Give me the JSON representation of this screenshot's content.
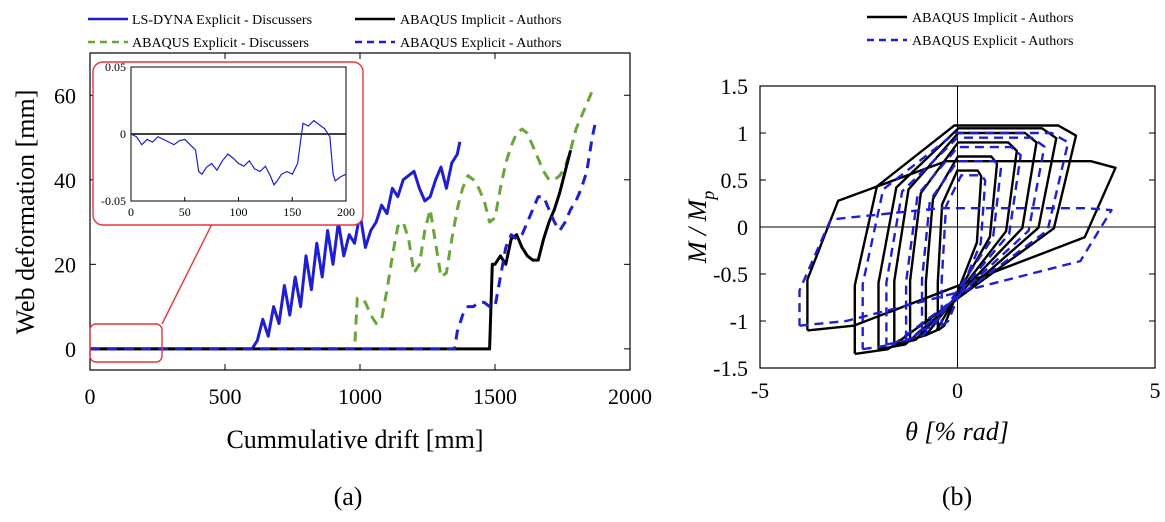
{
  "captions": {
    "a": "(a)",
    "b": "(b)"
  },
  "chart_data": [
    {
      "type": "line",
      "xlabel": "Cummulative drift [mm]",
      "ylabel": "Web deformation [mm]",
      "xlim": [
        0,
        2000
      ],
      "ylim": [
        -5,
        70
      ],
      "xticks": [
        "0",
        "500",
        "1000",
        "1500",
        "2000"
      ],
      "yticks": [
        "0",
        "20",
        "40",
        "60"
      ],
      "legend_position": "top",
      "series": [
        {
          "name": "LS-DYNA Explicit - Discussers",
          "color": "#1f1fd1",
          "style": "solid",
          "x": [
            0,
            600,
            620,
            640,
            660,
            680,
            700,
            720,
            740,
            760,
            780,
            800,
            820,
            840,
            860,
            880,
            900,
            920,
            940,
            960,
            980,
            1000,
            1020,
            1040,
            1060,
            1080,
            1100,
            1120,
            1140,
            1160,
            1180,
            1200,
            1220,
            1240,
            1260,
            1280,
            1300,
            1320,
            1340,
            1360,
            1370
          ],
          "y": [
            0,
            0,
            2,
            7,
            3,
            10,
            6,
            15,
            8,
            17,
            10,
            22,
            14,
            25,
            17,
            28,
            20,
            30,
            22,
            27,
            25,
            32,
            24,
            28,
            30,
            34,
            32,
            38,
            36,
            40,
            41,
            42,
            38,
            35,
            36,
            40,
            43,
            38,
            44,
            46,
            49
          ]
        },
        {
          "name": "ABAQUS Explicit - Discussers",
          "color": "#6aa53a",
          "style": "dashed",
          "x": [
            0,
            980,
            990,
            1000,
            1020,
            1040,
            1060,
            1080,
            1100,
            1120,
            1140,
            1160,
            1180,
            1200,
            1220,
            1240,
            1260,
            1280,
            1300,
            1320,
            1340,
            1360,
            1380,
            1400,
            1420,
            1440,
            1460,
            1480,
            1500,
            1520,
            1540,
            1560,
            1580,
            1600,
            1620,
            1640,
            1660,
            1680,
            1700,
            1720,
            1740,
            1760,
            1780,
            1800,
            1820,
            1840,
            1860,
            1870
          ],
          "y": [
            0,
            0,
            12,
            12,
            11,
            8,
            6,
            7,
            14,
            22,
            29,
            30,
            26,
            18,
            20,
            28,
            33,
            25,
            17,
            18,
            26,
            33,
            38,
            41,
            40,
            38,
            35,
            30,
            31,
            38,
            44,
            48,
            51,
            52,
            51,
            48,
            45,
            42,
            40,
            40,
            41,
            43,
            47,
            52,
            55,
            58,
            61,
            61
          ]
        },
        {
          "name": "ABAQUS Implicit - Authors",
          "color": "#000000",
          "style": "solid",
          "x": [
            0,
            1480,
            1490,
            1500,
            1520,
            1540,
            1560,
            1580,
            1600,
            1620,
            1640,
            1660,
            1680,
            1700,
            1720,
            1740,
            1760,
            1780
          ],
          "y": [
            0,
            0,
            20,
            20,
            22,
            20,
            26,
            27,
            24,
            22,
            21,
            21,
            26,
            30,
            33,
            37,
            42,
            47
          ]
        },
        {
          "name": "ABAQUS Explicit - Authors",
          "color": "#1f1fd1",
          "style": "dashed",
          "x": [
            0,
            1350,
            1360,
            1380,
            1400,
            1420,
            1440,
            1460,
            1480,
            1500,
            1520,
            1540,
            1560,
            1580,
            1600,
            1620,
            1640,
            1660,
            1680,
            1700,
            1720,
            1740,
            1760,
            1780,
            1800,
            1820,
            1840,
            1860,
            1870
          ],
          "y": [
            0,
            0,
            4,
            8,
            10,
            10,
            11,
            11,
            10,
            10,
            17,
            24,
            27,
            26,
            27,
            30,
            33,
            36,
            36,
            33,
            30,
            28,
            30,
            33,
            35,
            38,
            42,
            50,
            53
          ]
        }
      ],
      "inset": {
        "xlim": [
          0,
          200
        ],
        "ylim": [
          -0.05,
          0.05
        ],
        "xticks": [
          "0",
          "50",
          "100",
          "150",
          "200"
        ],
        "yticks": [
          "0.05",
          "0",
          "-0.05"
        ],
        "series": {
          "color": "#1f1fd1",
          "x": [
            0,
            5,
            10,
            15,
            20,
            25,
            30,
            35,
            40,
            45,
            50,
            55,
            60,
            63,
            66,
            70,
            75,
            80,
            85,
            90,
            95,
            100,
            105,
            110,
            115,
            120,
            125,
            130,
            133,
            136,
            140,
            145,
            150,
            155,
            160,
            165,
            170,
            175,
            180,
            185,
            188,
            190,
            195,
            200
          ],
          "y": [
            0,
            -0.002,
            -0.008,
            -0.004,
            -0.006,
            -0.002,
            -0.004,
            -0.006,
            -0.008,
            -0.005,
            -0.004,
            -0.008,
            -0.012,
            -0.028,
            -0.03,
            -0.025,
            -0.022,
            -0.027,
            -0.02,
            -0.015,
            -0.018,
            -0.022,
            -0.024,
            -0.02,
            -0.026,
            -0.028,
            -0.024,
            -0.032,
            -0.038,
            -0.035,
            -0.03,
            -0.028,
            -0.03,
            -0.022,
            0.008,
            0.006,
            0.01,
            0.007,
            0.004,
            -0.002,
            -0.03,
            -0.035,
            -0.032,
            -0.03
          ]
        },
        "baseline": 0
      }
    },
    {
      "type": "line",
      "xlabel": "θ [% rad]",
      "ylabel": "M / M",
      "ylabel_sub": "p",
      "xlim": [
        -5,
        5
      ],
      "ylim": [
        -1.5,
        1.5
      ],
      "xticks": [
        "-5",
        "0",
        "5"
      ],
      "yticks": [
        "1.5",
        "1",
        "0.5",
        "0",
        "-0.5",
        "-1",
        "-1.5"
      ],
      "legend_position": "top",
      "series": [
        {
          "name": "ABAQUS Implicit - Authors",
          "color": "#000000",
          "style": "solid",
          "loops": [
            {
              "xmin": -0.5,
              "xmax": 0.6,
              "ymin": -1.1,
              "ymax": 0.6
            },
            {
              "xmin": -0.8,
              "xmax": 1.0,
              "ymin": -1.15,
              "ymax": 0.75
            },
            {
              "xmin": -1.2,
              "xmax": 1.5,
              "ymin": -1.2,
              "ymax": 0.9
            },
            {
              "xmin": -1.6,
              "xmax": 2.0,
              "ymin": -1.25,
              "ymax": 1.0
            },
            {
              "xmin": -2.0,
              "xmax": 2.5,
              "ymin": -1.3,
              "ymax": 1.05
            },
            {
              "xmin": -2.6,
              "xmax": 3.0,
              "ymin": -1.35,
              "ymax": 1.08
            },
            {
              "xmin": -3.8,
              "xmax": 4.0,
              "ymin": -1.1,
              "ymax": 0.7
            }
          ]
        },
        {
          "name": "ABAQUS Explicit - Authors",
          "color": "#1f1fd1",
          "style": "dashed",
          "loops": [
            {
              "xmin": -0.4,
              "xmax": 0.7,
              "ymin": -1.05,
              "ymax": 0.55
            },
            {
              "xmin": -0.9,
              "xmax": 1.1,
              "ymin": -1.1,
              "ymax": 0.7
            },
            {
              "xmin": -1.3,
              "xmax": 1.6,
              "ymin": -1.2,
              "ymax": 0.85
            },
            {
              "xmin": -1.8,
              "xmax": 2.2,
              "ymin": -1.25,
              "ymax": 0.95
            },
            {
              "xmin": -2.4,
              "xmax": 2.8,
              "ymin": -1.3,
              "ymax": 1.0
            },
            {
              "xmin": -4.0,
              "xmax": 3.9,
              "ymin": -1.05,
              "ymax": 0.2
            }
          ]
        }
      ]
    }
  ]
}
